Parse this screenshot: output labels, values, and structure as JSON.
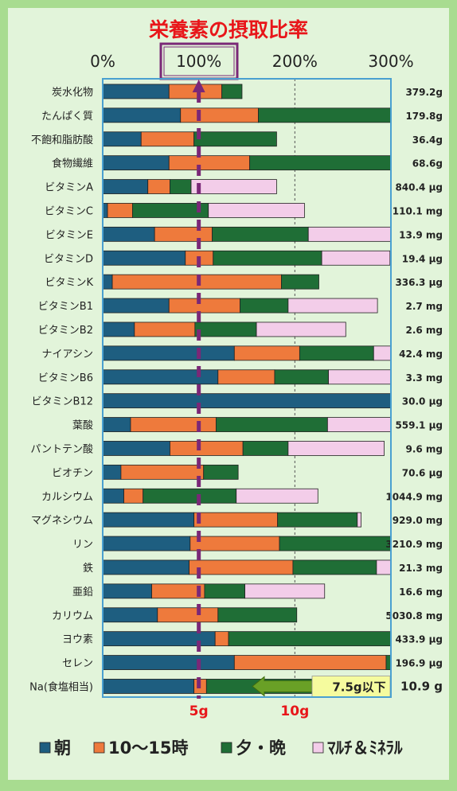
{
  "colors": {
    "background": "#a8dc90",
    "panel": "#e2f4da",
    "morning": "#1e5e80",
    "midday": "#ee7a3c",
    "evening": "#1f6e36",
    "supplement": "#f3cde9",
    "title": "#e8161a",
    "reference_line": "#7a2877",
    "axis_frame": "#4aa0d0",
    "salt_arrow": "#69a026",
    "salt_label_bg": "#f5fb9e",
    "bottom_axis_label": "#e8161a"
  },
  "chart_data": {
    "type": "bar",
    "stacked": true,
    "orientation": "horizontal",
    "title": "栄養素の摂取比率",
    "xlim": [
      0,
      300
    ],
    "x_ticks": [
      {
        "value": 0,
        "label": "0%"
      },
      {
        "value": 100,
        "label": "100%"
      },
      {
        "value": 200,
        "label": "200%"
      },
      {
        "value": 300,
        "label": "300%"
      }
    ],
    "bottom_labels": [
      {
        "value": 100,
        "label": "5g"
      },
      {
        "value": 200,
        "label": "10g"
      }
    ],
    "reference_line": 100,
    "grid": "dashed verticals at 200% and 300%",
    "legend": [
      "朝",
      "10～15時",
      "夕・晩",
      "ﾏﾙﾁ＆ﾐﾈﾗﾙ"
    ],
    "legend_position": "bottom",
    "categories": [
      "炭水化物",
      "たんぱく質",
      "不飽和脂肪酸",
      "食物繊維",
      "ビタミンA",
      "ビタミンC",
      "ビタミンE",
      "ビタミンD",
      "ビタミンK",
      "ビタミンB1",
      "ビタミンB2",
      "ナイアシン",
      "ビタミンB6",
      "ビタミンB12",
      "葉酸",
      "パントテン酸",
      "ビオチン",
      "カルシウム",
      "マグネシウム",
      "リン",
      "鉄",
      "亜鉛",
      "カリウム",
      "ヨウ素",
      "セレン",
      "Na(食塩相当)"
    ],
    "totals": [
      "379.2g",
      "179.8g",
      "36.4g",
      "68.6g",
      "840.4 μg",
      "110.1 mg",
      "13.9 mg",
      "19.4 μg",
      "336.3 μg",
      "2.7 mg",
      "2.6 mg",
      "42.4 mg",
      "3.3 mg",
      "30.0 μg",
      "559.1 μg",
      "9.6 mg",
      "70.6 μg",
      "1044.9 mg",
      "929.0 mg",
      "3210.9 mg",
      "21.3 mg",
      "16.6 mg",
      "5030.8 mg",
      "433.9 μg",
      "196.9 μg",
      "10.9 g"
    ],
    "series": [
      {
        "name": "朝",
        "values": [
          69,
          81,
          40,
          69,
          47,
          5,
          54,
          86,
          10,
          69,
          33,
          137,
          120,
          300,
          29,
          70,
          19,
          22,
          95,
          91,
          90,
          51,
          57,
          117,
          137,
          95
        ]
      },
      {
        "name": "10～15時",
        "values": [
          55,
          81,
          55,
          84,
          23,
          26,
          60,
          29,
          176,
          74,
          63,
          68,
          59,
          0,
          89,
          76,
          86,
          20,
          87,
          93,
          108,
          55,
          63,
          14,
          158,
          13
        ]
      },
      {
        "name": "夕・晩",
        "values": [
          21,
          138,
          86,
          147,
          22,
          79,
          100,
          113,
          39,
          50,
          64,
          77,
          56,
          0,
          116,
          47,
          36,
          97,
          83,
          117,
          87,
          42,
          82,
          170,
          6,
          111
        ]
      },
      {
        "name": "ﾏﾙﾁ＆ﾐﾈﾗﾙ",
        "values": [
          0,
          0,
          0,
          0,
          89,
          100,
          87,
          71,
          0,
          93,
          93,
          18,
          66,
          0,
          67,
          100,
          0,
          85,
          4,
          0,
          16,
          83,
          0,
          0,
          0,
          0
        ]
      }
    ],
    "annotation": "7.5g以下"
  }
}
